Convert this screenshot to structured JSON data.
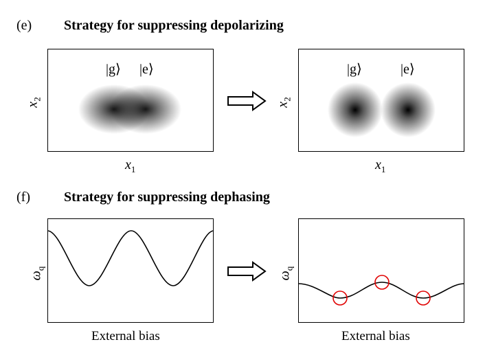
{
  "panel_e": {
    "label": "(e)",
    "title": "Strategy for suppressing depolarizing",
    "left": {
      "x_label": "x",
      "x_sub": "1",
      "y_label": "x",
      "y_sub": "2",
      "ket_g": "|g⟩",
      "ket_e": "|e⟩"
    },
    "right": {
      "x_label": "x",
      "x_sub": "1",
      "y_label": "x",
      "y_sub": "2",
      "ket_g": "|g⟩",
      "ket_e": "|e⟩"
    }
  },
  "panel_f": {
    "label": "(f)",
    "title": "Strategy for suppressing dephasing",
    "left": {
      "x_label": "External bias",
      "y_label": "ω",
      "y_sub": "q"
    },
    "right": {
      "x_label": "External bias",
      "y_label": "ω",
      "y_sub": "q"
    }
  },
  "colors": {
    "marker": "#e00000",
    "curve": "#000000"
  }
}
